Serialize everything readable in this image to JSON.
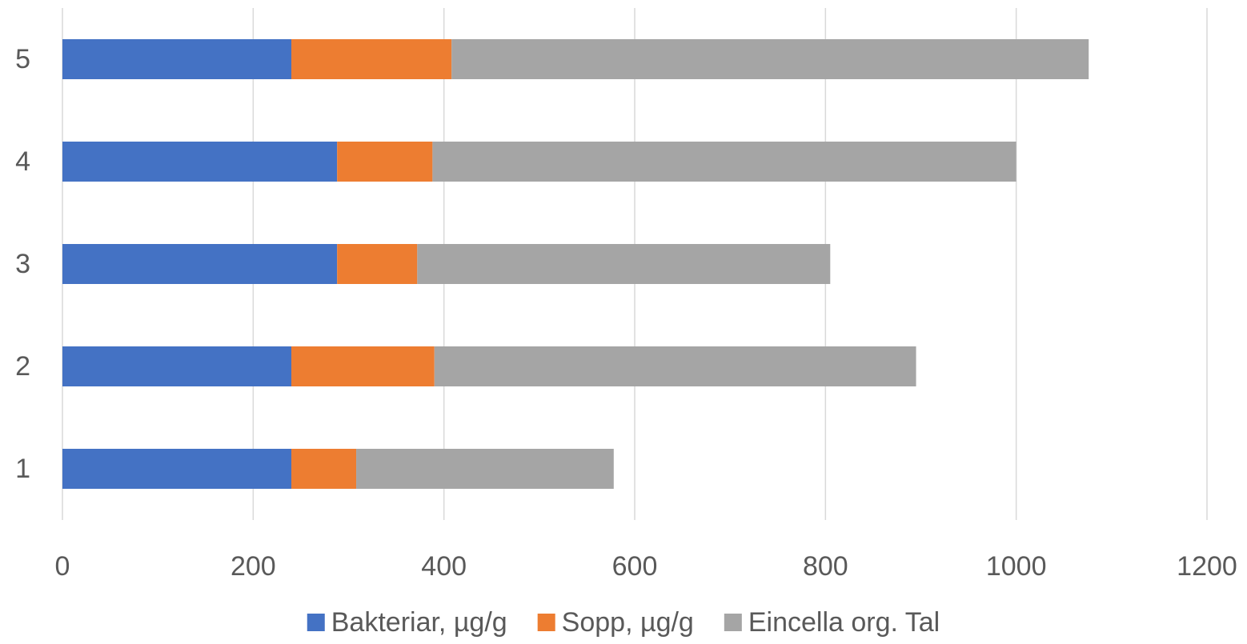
{
  "chart_data": {
    "type": "bar",
    "orientation": "horizontal",
    "stacked": true,
    "title": "",
    "xlabel": "",
    "ylabel": "",
    "categories": [
      "1",
      "2",
      "3",
      "4",
      "5"
    ],
    "series": [
      {
        "name": "Bakteriar, µg/g",
        "color": "#4472C4",
        "values": [
          240,
          240,
          288,
          288,
          240
        ]
      },
      {
        "name": "Sopp, µg/g",
        "color": "#ED7D31",
        "values": [
          68,
          150,
          84,
          100,
          168
        ]
      },
      {
        "name": "Eincella org. Tal",
        "color": "#A5A5A5",
        "values": [
          270,
          505,
          433,
          612,
          668
        ]
      }
    ],
    "xlim": [
      0,
      1200
    ],
    "xticks": [
      "0",
      "200",
      "400",
      "600",
      "800",
      "1000",
      "1200"
    ],
    "grid": true,
    "legend_position": "bottom"
  }
}
